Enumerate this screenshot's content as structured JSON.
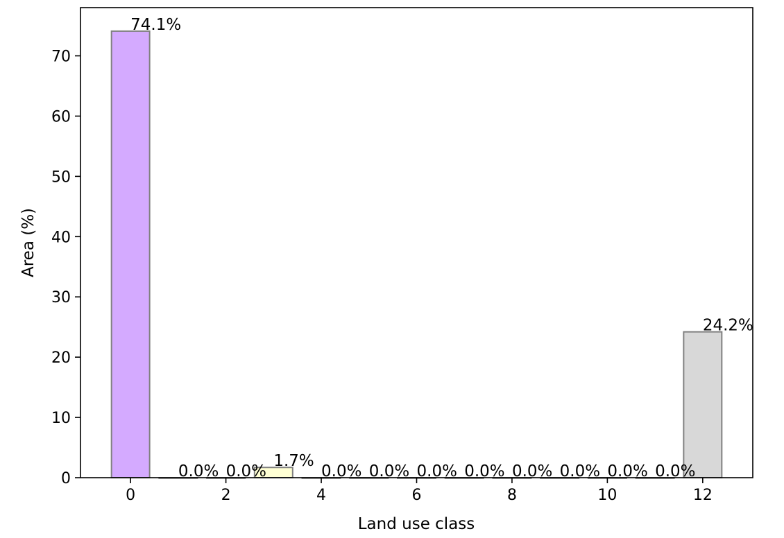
{
  "chart_data": {
    "type": "bar",
    "xlabel": "Land use class",
    "ylabel": "Area (%)",
    "x": [
      0,
      1,
      2,
      3,
      4,
      5,
      6,
      7,
      8,
      9,
      10,
      11,
      12
    ],
    "values": [
      74.1,
      0.0,
      0.0,
      1.7,
      0.0,
      0.0,
      0.0,
      0.0,
      0.0,
      0.0,
      0.0,
      0.0,
      24.2
    ],
    "data_labels": [
      "74.1%",
      "0.0%",
      "0.0%",
      "1.7%",
      "0.0%",
      "0.0%",
      "0.0%",
      "0.0%",
      "0.0%",
      "0.0%",
      "0.0%",
      "0.0%",
      "24.2%"
    ],
    "bar_colors": [
      "#d4aaff",
      "#d4aaff",
      "#d4aaff",
      "#ffffd4",
      "#ffffd4",
      "#ffffd4",
      "#d8d8d8",
      "#d8d8d8",
      "#d8d8d8",
      "#d8d8d8",
      "#d8d8d8",
      "#d8d8d8",
      "#d8d8d8"
    ],
    "edge_color": "#808080",
    "xlim": [
      -1.05,
      13.05
    ],
    "ylim": [
      0,
      78
    ],
    "xticks": [
      0,
      2,
      4,
      6,
      8,
      10,
      12
    ],
    "yticks": [
      0,
      10,
      20,
      30,
      40,
      50,
      60,
      70
    ],
    "grid": false,
    "legend": false
  }
}
